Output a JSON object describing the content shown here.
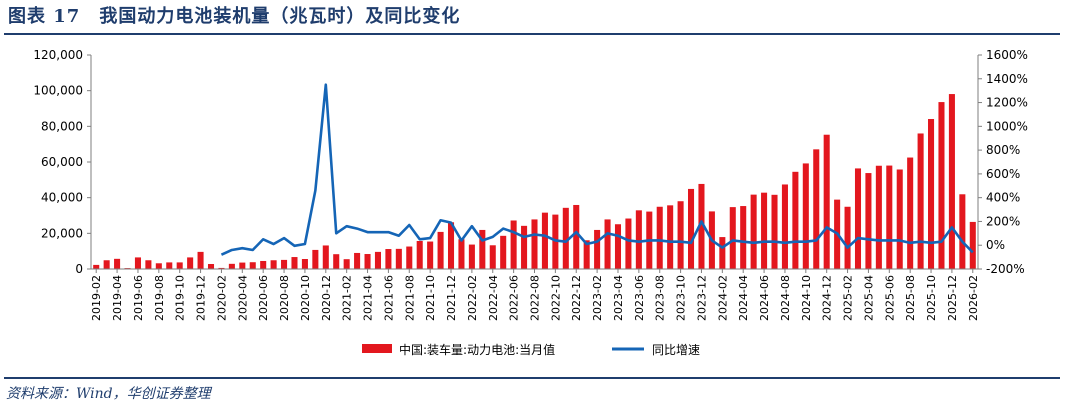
{
  "header": {
    "title": "图表 17　我国动力电池装机量（兆瓦时）及同比变化"
  },
  "footer": {
    "source": "资料来源：Wind，华创证券整理"
  },
  "colors": {
    "bar": "#e3171e",
    "line": "#1565b6",
    "text": "#1f3d6d"
  },
  "chart_data": {
    "type": "bar",
    "title": "我国动力电池装机量（兆瓦时）及同比变化",
    "x_tick_labels": [
      "2019-02",
      "2019-04",
      "2019-06",
      "2019-08",
      "2019-10",
      "2019-12",
      "2020-02",
      "2020-04",
      "2020-06",
      "2020-08",
      "2020-10",
      "2020-12",
      "2021-02",
      "2021-04",
      "2021-06",
      "2021-08",
      "2021-10",
      "2021-12",
      "2022-02",
      "2022-04",
      "2022-06",
      "2022-08",
      "2022-10",
      "2022-12",
      "2023-02",
      "2023-04",
      "2023-06",
      "2023-08",
      "2023-10",
      "2023-12",
      "2024-02",
      "2024-04",
      "2024-06",
      "2024-08",
      "2024-10",
      "2024-12",
      "2025-02",
      "2025-04",
      "2025-06",
      "2025-08",
      "2025-10",
      "2025-12",
      "2026-02"
    ],
    "categories": [
      "2019-02",
      "2019-03",
      "2019-04",
      "2019-05",
      "2019-06",
      "2019-07",
      "2019-08",
      "2019-09",
      "2019-10",
      "2019-11",
      "2019-12",
      "2020-01",
      "2020-02",
      "2020-03",
      "2020-04",
      "2020-05",
      "2020-06",
      "2020-07",
      "2020-08",
      "2020-09",
      "2020-10",
      "2020-11",
      "2020-12",
      "2021-01",
      "2021-02",
      "2021-03",
      "2021-04",
      "2021-05",
      "2021-06",
      "2021-07",
      "2021-08",
      "2021-09",
      "2021-10",
      "2021-11",
      "2021-12",
      "2022-01",
      "2022-02",
      "2022-03",
      "2022-04",
      "2022-05",
      "2022-06",
      "2022-07",
      "2022-08",
      "2022-09",
      "2022-10",
      "2022-11",
      "2022-12",
      "2023-01",
      "2023-02",
      "2023-03",
      "2023-04",
      "2023-05",
      "2023-06",
      "2023-07",
      "2023-08",
      "2023-09",
      "2023-10",
      "2023-11",
      "2023-12",
      "2024-01",
      "2024-02",
      "2024-03",
      "2024-04",
      "2024-05",
      "2024-06",
      "2024-07",
      "2024-08",
      "2024-09",
      "2024-10",
      "2024-11",
      "2024-12",
      "2025-01",
      "2025-02",
      "2025-03",
      "2025-04",
      "2025-05",
      "2025-06",
      "2025-07",
      "2025-08",
      "2025-09",
      "2025-10",
      "2025-11",
      "2025-12",
      "2026-01",
      "2026-02"
    ],
    "series": [
      {
        "name": "中国:装车量:动力电池:当月值",
        "kind": "bar",
        "axis": "left",
        "values": [
          2300,
          4900,
          5700,
          500,
          6500,
          4900,
          3200,
          3700,
          3700,
          6500,
          9600,
          2800,
          600,
          2900,
          3600,
          3800,
          4500,
          4900,
          5100,
          6700,
          5600,
          10700,
          13200,
          8300,
          5500,
          9000,
          8400,
          9600,
          11200,
          11300,
          12600,
          15700,
          15400,
          20800,
          26200,
          16700,
          13700,
          21900,
          13300,
          18600,
          27200,
          24200,
          27800,
          31600,
          30500,
          34300,
          35900,
          16100,
          21900,
          27800,
          25100,
          28300,
          32900,
          32200,
          34900,
          35700,
          38000,
          44900,
          47700,
          32300,
          17900,
          34700,
          35300,
          41700,
          42800,
          41600,
          47400,
          54500,
          59200,
          67100,
          75300,
          38900,
          34900,
          56400,
          53800,
          57900,
          58000,
          55800,
          62500,
          76000,
          84100,
          93600,
          98100,
          41900,
          26400
        ]
      },
      {
        "name": "同比增速",
        "kind": "line",
        "axis": "right",
        "values": [
          null,
          null,
          null,
          null,
          null,
          null,
          null,
          null,
          null,
          null,
          null,
          null,
          -80,
          -40,
          -25,
          -40,
          50,
          10,
          60,
          -5,
          10,
          460,
          1350,
          100,
          160,
          140,
          110,
          110,
          110,
          80,
          170,
          50,
          60,
          210,
          190,
          40,
          160,
          40,
          70,
          140,
          110,
          70,
          90,
          80,
          40,
          30,
          110,
          10,
          30,
          100,
          80,
          40,
          30,
          40,
          40,
          30,
          30,
          20,
          200,
          40,
          -20,
          40,
          30,
          20,
          30,
          30,
          20,
          30,
          30,
          40,
          150,
          100,
          -20,
          60,
          50,
          40,
          40,
          40,
          20,
          30,
          20,
          30,
          150,
          30,
          -60
        ]
      }
    ],
    "left_axis": {
      "ylim": [
        0,
        120000
      ],
      "ticks": [
        "0",
        "20,000",
        "40,000",
        "60,000",
        "80,000",
        "100,000",
        "120,000"
      ]
    },
    "right_axis": {
      "ylim": [
        -200,
        1600
      ],
      "ticks": [
        "-200%",
        "0%",
        "200%",
        "400%",
        "600%",
        "800%",
        "1000%",
        "1200%",
        "1400%",
        "1600%"
      ]
    },
    "grid": false,
    "legend_position": "bottom"
  }
}
